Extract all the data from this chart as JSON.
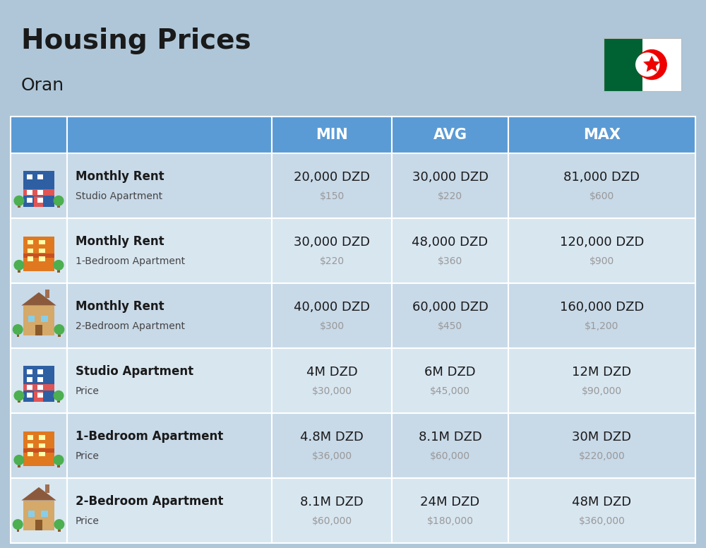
{
  "title": "Housing Prices",
  "subtitle": "Oran",
  "background_color": "#aec6d8",
  "header_color": "#5b9bd5",
  "header_text_color": "#ffffff",
  "row_color_even": "#c8d9e8",
  "row_color_odd": "#d8e6f0",
  "cell_line_color": "#ffffff",
  "col_headers": [
    "MIN",
    "AVG",
    "MAX"
  ],
  "sub_color": "#999999",
  "main_text_color": "#1a1a1a",
  "rows": [
    {
      "label_bold": "Monthly Rent",
      "label_sub": "Studio Apartment",
      "min_main": "20,000 DZD",
      "min_sub": "$150",
      "avg_main": "30,000 DZD",
      "avg_sub": "$220",
      "max_main": "81,000 DZD",
      "max_sub": "$600",
      "icon": "blue_studio"
    },
    {
      "label_bold": "Monthly Rent",
      "label_sub": "1-Bedroom Apartment",
      "min_main": "30,000 DZD",
      "min_sub": "$220",
      "avg_main": "48,000 DZD",
      "avg_sub": "$360",
      "max_main": "120,000 DZD",
      "max_sub": "$900",
      "icon": "orange_apt"
    },
    {
      "label_bold": "Monthly Rent",
      "label_sub": "2-Bedroom Apartment",
      "min_main": "40,000 DZD",
      "min_sub": "$300",
      "avg_main": "60,000 DZD",
      "avg_sub": "$450",
      "max_main": "160,000 DZD",
      "max_sub": "$1,200",
      "icon": "tan_house"
    },
    {
      "label_bold": "Studio Apartment",
      "label_sub": "Price",
      "min_main": "4M DZD",
      "min_sub": "$30,000",
      "avg_main": "6M DZD",
      "avg_sub": "$45,000",
      "max_main": "12M DZD",
      "max_sub": "$90,000",
      "icon": "blue_studio"
    },
    {
      "label_bold": "1-Bedroom Apartment",
      "label_sub": "Price",
      "min_main": "4.8M DZD",
      "min_sub": "$36,000",
      "avg_main": "8.1M DZD",
      "avg_sub": "$60,000",
      "max_main": "30M DZD",
      "max_sub": "$220,000",
      "icon": "orange_apt"
    },
    {
      "label_bold": "2-Bedroom Apartment",
      "label_sub": "Price",
      "min_main": "8.1M DZD",
      "min_sub": "$60,000",
      "avg_main": "24M DZD",
      "avg_sub": "$180,000",
      "max_main": "48M DZD",
      "max_sub": "$360,000",
      "icon": "tan_house"
    }
  ],
  "flag_colors": {
    "green": "#006233",
    "white": "#ffffff",
    "red": "#ef0000"
  },
  "title_fontsize": 28,
  "subtitle_fontsize": 18,
  "header_fontsize": 15,
  "main_val_fontsize": 13,
  "sub_val_fontsize": 10,
  "label_bold_fontsize": 12,
  "label_sub_fontsize": 10
}
